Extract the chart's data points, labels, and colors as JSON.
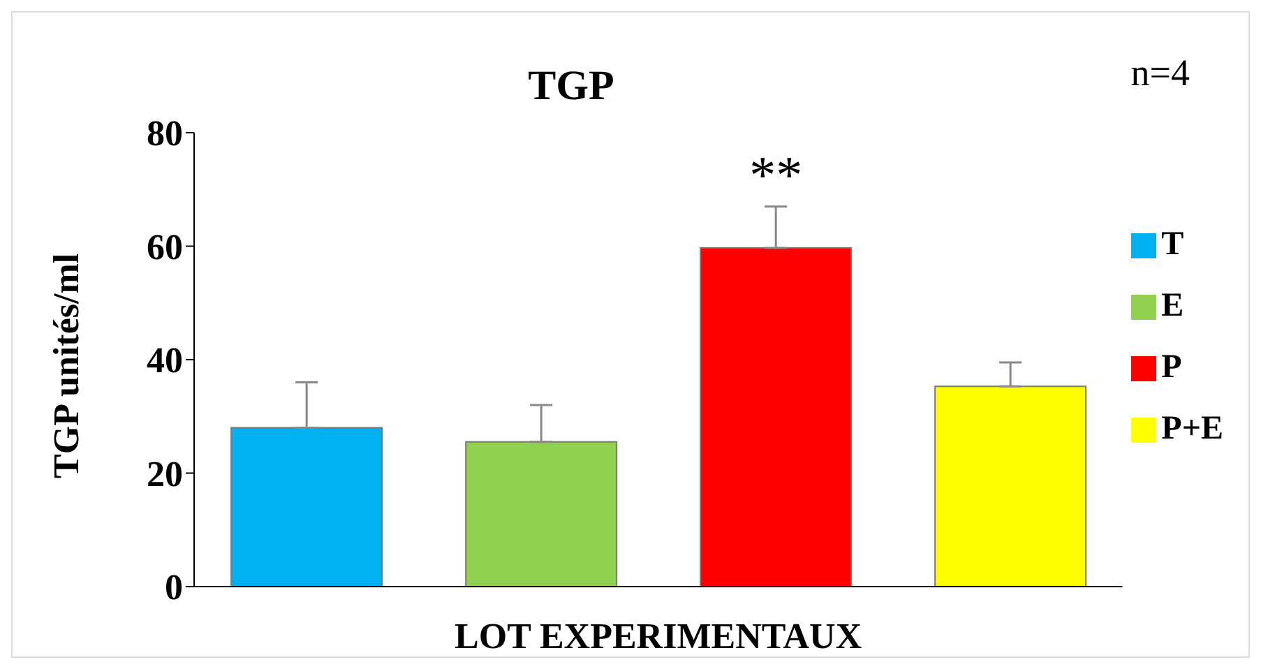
{
  "chart_data": {
    "type": "bar",
    "title": "TGP",
    "xlabel": "LOT EXPERIMENTAUX",
    "ylabel": "TGP unités/ml",
    "categories": [
      null
    ],
    "series": [
      {
        "name": "T",
        "color": "#00b0f0",
        "values": [
          28
        ],
        "errors": [
          [
            28,
            36
          ]
        ]
      },
      {
        "name": "E",
        "color": "#92d050",
        "values": [
          25.5
        ],
        "errors": [
          [
            25.5,
            32
          ]
        ]
      },
      {
        "name": "P",
        "color": "#ff0000",
        "values": [
          59.7
        ],
        "errors": [
          [
            59.7,
            67
          ]
        ]
      },
      {
        "name": "P+E",
        "color": "#ffff00",
        "values": [
          35.3
        ],
        "errors": [
          [
            35.3,
            39.5
          ]
        ]
      }
    ],
    "ylim": [
      0,
      80
    ],
    "yticks": [
      0,
      20,
      40,
      60,
      80
    ],
    "grid": false,
    "legend": "right",
    "annotations": [
      "n=4",
      "**"
    ]
  }
}
